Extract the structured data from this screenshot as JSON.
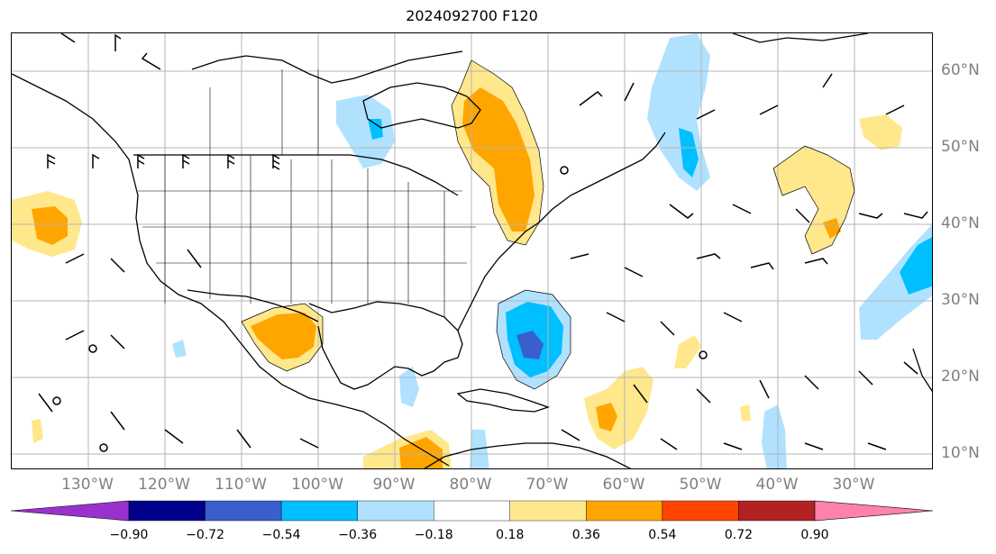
{
  "title": "2024092700 F120",
  "axes": {
    "lon_labels": [
      "130°W",
      "120°W",
      "110°W",
      "100°W",
      "90°W",
      "80°W",
      "70°W",
      "60°W",
      "50°W",
      "40°W",
      "30°W"
    ],
    "lat_labels": [
      "60°N",
      "50°N",
      "40°N",
      "30°N",
      "20°N",
      "10°N"
    ]
  },
  "colorbar": {
    "labels": [
      "−0.90",
      "−0.72",
      "−0.54",
      "−0.36",
      "−0.18",
      "0.18",
      "0.36",
      "0.54",
      "0.72",
      "0.90"
    ],
    "colors": [
      "#9932cc",
      "#00008b",
      "#3a5fcd",
      "#00bfff",
      "#b0e2ff",
      "#ffffff",
      "#ffe88c",
      "#ffa500",
      "#ff4500",
      "#b22222",
      "#ff82ab"
    ]
  },
  "grid": "on",
  "chart_data": {
    "type": "heatmap",
    "title": "2024092700 F120",
    "xlim": [
      "135°W",
      "20°W"
    ],
    "ylim": [
      "8°N",
      "66°N"
    ],
    "levels": [
      -0.9,
      -0.72,
      -0.54,
      -0.36,
      -0.18,
      0.18,
      0.36,
      0.54,
      0.72,
      0.9
    ],
    "features": [
      "filled anomaly contours",
      "wind barbs",
      "coastlines",
      "state borders"
    ]
  }
}
